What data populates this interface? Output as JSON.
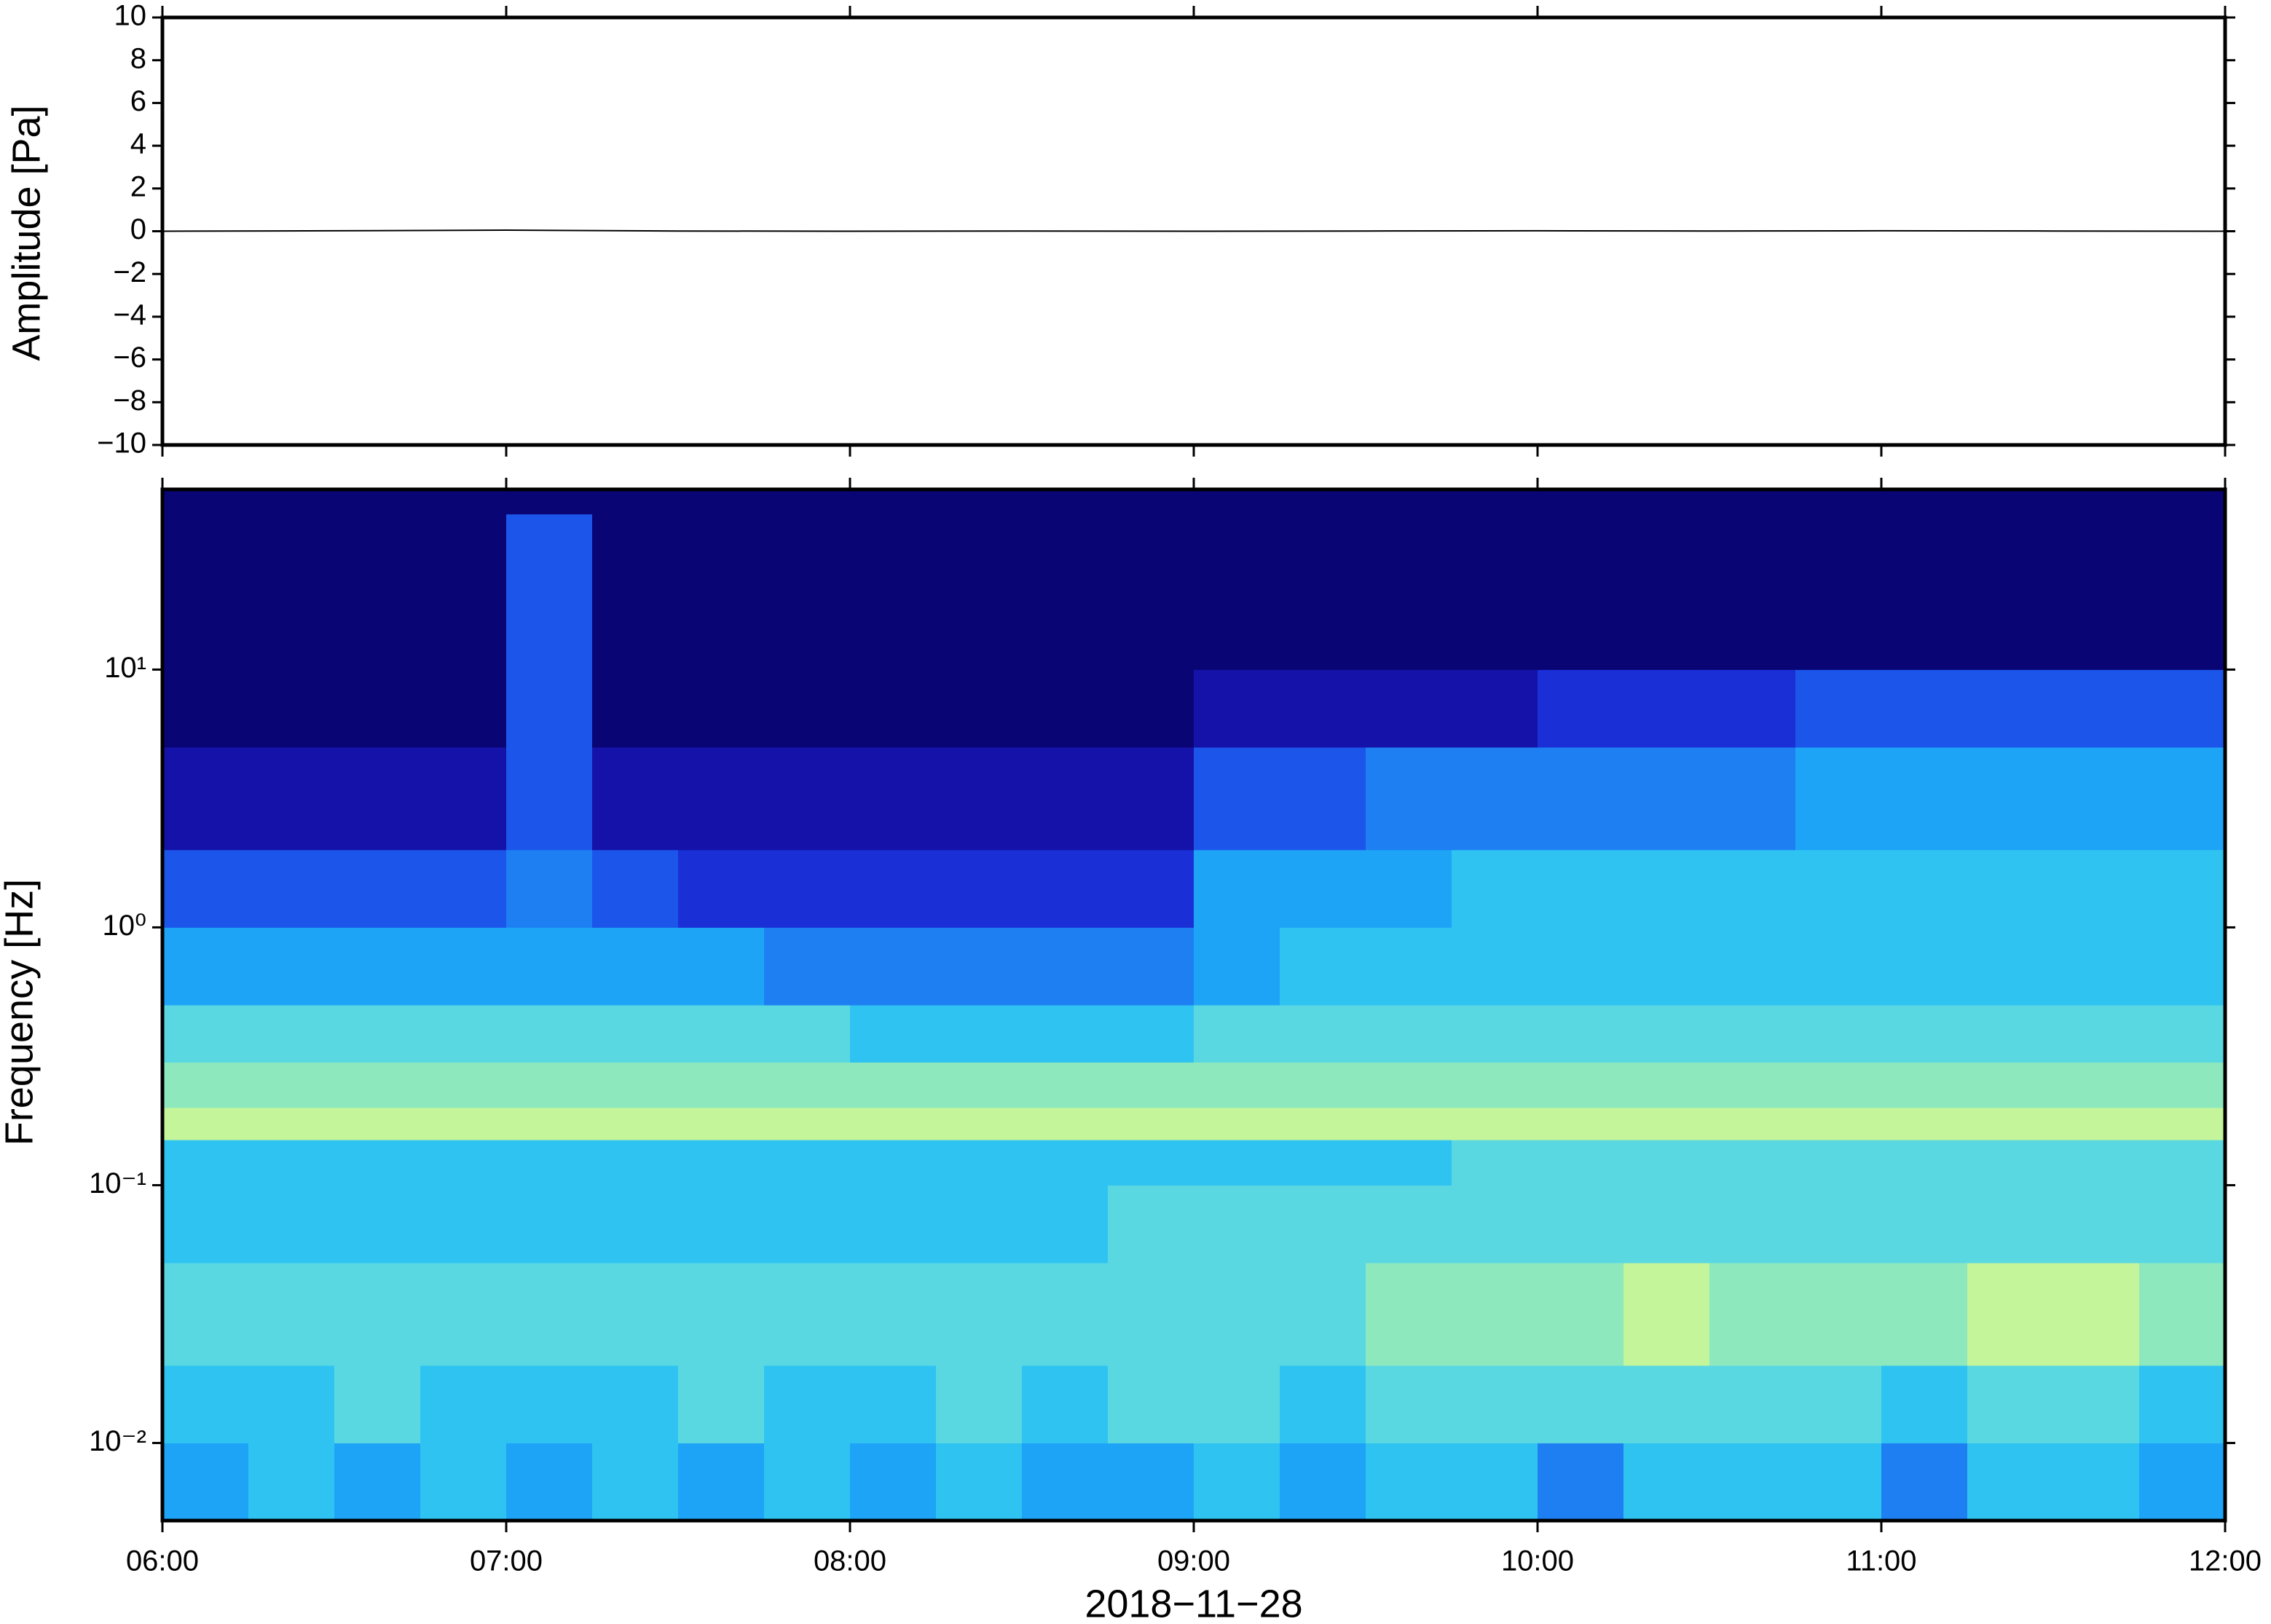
{
  "chart_data": [
    {
      "type": "line",
      "ylabel": "Amplitude [Pa]",
      "xlim": [
        "06:00",
        "12:00"
      ],
      "xticks": [
        "06:00",
        "07:00",
        "08:00",
        "09:00",
        "10:00",
        "11:00",
        "12:00"
      ],
      "ylim": [
        -10,
        10
      ],
      "yticks": [
        {
          "value": -10,
          "label": "−10"
        },
        {
          "value": -8,
          "label": "−8"
        },
        {
          "value": -6,
          "label": "−6"
        },
        {
          "value": -4,
          "label": "−4"
        },
        {
          "value": -2,
          "label": "−2"
        },
        0,
        2,
        4,
        6,
        8,
        10
      ],
      "series": [
        {
          "name": "Amplitude",
          "color": "#000000",
          "x": [
            "06:00",
            "06:30",
            "07:00",
            "07:30",
            "08:00",
            "08:30",
            "09:00",
            "09:30",
            "10:00",
            "10:30",
            "11:00",
            "11:30",
            "12:00"
          ],
          "values": [
            0,
            0.02,
            0.05,
            0.01,
            0,
            0.01,
            0,
            0.01,
            0.02,
            0.01,
            0.02,
            0.01,
            0
          ]
        }
      ]
    },
    {
      "type": "heatmap",
      "ylabel": "Frequency [Hz]",
      "xlabel": "2018−11−28",
      "log_y": true,
      "xlim": [
        "06:00",
        "12:00"
      ],
      "xticks": [
        "06:00",
        "07:00",
        "08:00",
        "09:00",
        "10:00",
        "11:00",
        "12:00"
      ],
      "ylim": [
        0.005,
        50
      ],
      "yticks": [
        {
          "value": 0.01,
          "label": "10⁻²"
        },
        {
          "value": 0.1,
          "label": "10⁻¹"
        },
        {
          "value": 1,
          "label": "10⁰"
        },
        {
          "value": 10,
          "label": "10¹"
        }
      ],
      "background": "#0a0575",
      "colormap": [
        "#0a0575",
        "#1412a8",
        "#1a2fd6",
        "#1c55ea",
        "#1e7ff2",
        "#1ea4f6",
        "#2fc3f2",
        "#5ad8e2",
        "#8ee8bd",
        "#c4f59a",
        "#e6fd8a"
      ],
      "x": [
        "06:00",
        "06:15",
        "06:30",
        "06:45",
        "07:00",
        "07:15",
        "07:30",
        "07:45",
        "08:00",
        "08:15",
        "08:30",
        "08:45",
        "09:00",
        "09:15",
        "09:30",
        "09:45",
        "10:00",
        "10:15",
        "10:30",
        "10:45",
        "11:00",
        "11:15",
        "11:30",
        "11:45",
        "12:00"
      ],
      "y": [
        0.005,
        0.01,
        0.02,
        0.05,
        0.1,
        0.15,
        0.2,
        0.3,
        0.5,
        1,
        2,
        5,
        10,
        40
      ],
      "values": [
        [
          5,
          6,
          5,
          6,
          5,
          6,
          5,
          6,
          5,
          6,
          5,
          5,
          6,
          5,
          6,
          6,
          4,
          6,
          6,
          6,
          4,
          6,
          6,
          5
        ],
        [
          6,
          6,
          7,
          6,
          6,
          6,
          7,
          6,
          6,
          7,
          6,
          7,
          7,
          6,
          7,
          7,
          7,
          7,
          7,
          7,
          6,
          7,
          7,
          6
        ],
        [
          7,
          7,
          7,
          7,
          7,
          7,
          7,
          7,
          7,
          7,
          7,
          7,
          7,
          7,
          8,
          8,
          8,
          9,
          8,
          8,
          8,
          9,
          9,
          8
        ],
        [
          6,
          6,
          6,
          6,
          6,
          6,
          6,
          6,
          6,
          6,
          6,
          7,
          7,
          7,
          7,
          7,
          7,
          7,
          7,
          7,
          7,
          7,
          7,
          7
        ],
        [
          6,
          6,
          6,
          6,
          6,
          6,
          6,
          6,
          6,
          6,
          6,
          6,
          6,
          6,
          6,
          7,
          7,
          7,
          7,
          7,
          7,
          7,
          7,
          7
        ],
        [
          9,
          9,
          9,
          9,
          9,
          9,
          9,
          9,
          9,
          9,
          9,
          9,
          9,
          9,
          9,
          9,
          9,
          9,
          9,
          9,
          9,
          9,
          9,
          9
        ],
        [
          8,
          8,
          8,
          8,
          8,
          8,
          8,
          8,
          8,
          8,
          8,
          8,
          8,
          8,
          8,
          8,
          8,
          8,
          8,
          8,
          8,
          8,
          8,
          8
        ],
        [
          7,
          7,
          7,
          7,
          7,
          7,
          7,
          7,
          6,
          6,
          6,
          6,
          7,
          7,
          7,
          7,
          7,
          7,
          7,
          7,
          7,
          7,
          7,
          7
        ],
        [
          5,
          5,
          5,
          5,
          5,
          5,
          5,
          4,
          4,
          4,
          4,
          4,
          5,
          6,
          6,
          6,
          6,
          6,
          6,
          6,
          6,
          6,
          6,
          6
        ],
        [
          3,
          3,
          3,
          3,
          4,
          3,
          2,
          2,
          2,
          2,
          2,
          2,
          5,
          5,
          5,
          6,
          6,
          6,
          6,
          6,
          6,
          6,
          6,
          6
        ],
        [
          1,
          1,
          1,
          1,
          3,
          1,
          1,
          1,
          1,
          1,
          1,
          1,
          3,
          3,
          4,
          4,
          4,
          4,
          4,
          5,
          5,
          5,
          5,
          5
        ],
        [
          0,
          0,
          0,
          0,
          3,
          0,
          0,
          0,
          0,
          0,
          0,
          0,
          1,
          1,
          1,
          1,
          2,
          2,
          2,
          3,
          3,
          3,
          3,
          3
        ],
        [
          0,
          0,
          0,
          0,
          3,
          0,
          0,
          0,
          0,
          0,
          0,
          0,
          0,
          0,
          0,
          0,
          0,
          0,
          0,
          0,
          0,
          0,
          0,
          0
        ]
      ]
    }
  ]
}
